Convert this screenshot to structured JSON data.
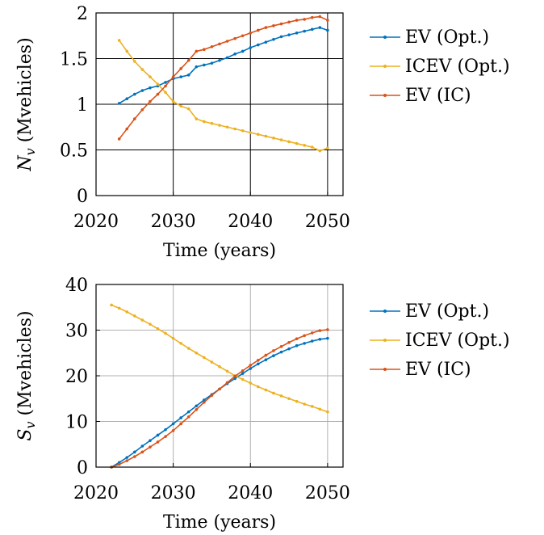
{
  "chart_data": [
    {
      "type": "line",
      "xlabel": "Time (years)",
      "ylabel_symbol": "N",
      "ylabel_sub": "v",
      "ylabel_unit": "(Mvehicles)",
      "xlim": [
        2020,
        2052
      ],
      "ylim": [
        0,
        2
      ],
      "xticks": [
        2020,
        2030,
        2040,
        2050
      ],
      "yticks": [
        0,
        0.5,
        1,
        1.5,
        2
      ],
      "ytick_labels": [
        "0",
        "0.5",
        "1",
        "1.5",
        "2"
      ],
      "grid": true,
      "grid_color": "#000000",
      "legend_position": "right",
      "series": [
        {
          "name": "EV (Opt.)",
          "color": "#0072BD",
          "x": [
            2023,
            2024,
            2025,
            2026,
            2027,
            2028,
            2029,
            2030,
            2031,
            2032,
            2033,
            2034,
            2035,
            2036,
            2037,
            2038,
            2039,
            2040,
            2041,
            2042,
            2043,
            2044,
            2045,
            2046,
            2047,
            2048,
            2049,
            2050
          ],
          "y": [
            1.01,
            1.06,
            1.11,
            1.15,
            1.18,
            1.2,
            1.24,
            1.28,
            1.3,
            1.32,
            1.41,
            1.43,
            1.45,
            1.48,
            1.51,
            1.55,
            1.58,
            1.62,
            1.65,
            1.68,
            1.71,
            1.74,
            1.76,
            1.78,
            1.8,
            1.82,
            1.84,
            1.81
          ]
        },
        {
          "name": "ICEV (Opt.)",
          "color": "#EDB120",
          "x": [
            2023,
            2024,
            2025,
            2026,
            2027,
            2028,
            2029,
            2030,
            2031,
            2032,
            2033,
            2034,
            2035,
            2036,
            2037,
            2038,
            2039,
            2040,
            2041,
            2042,
            2043,
            2044,
            2045,
            2046,
            2047,
            2048,
            2049,
            2050
          ],
          "y": [
            1.7,
            1.58,
            1.47,
            1.38,
            1.3,
            1.22,
            1.13,
            1.03,
            0.98,
            0.95,
            0.84,
            0.81,
            0.79,
            0.77,
            0.75,
            0.73,
            0.71,
            0.69,
            0.67,
            0.65,
            0.63,
            0.61,
            0.59,
            0.57,
            0.55,
            0.53,
            0.49,
            0.52
          ]
        },
        {
          "name": "EV (IC)",
          "color": "#D95319",
          "x": [
            2023,
            2024,
            2025,
            2026,
            2027,
            2028,
            2029,
            2030,
            2031,
            2032,
            2033,
            2034,
            2035,
            2036,
            2037,
            2038,
            2039,
            2040,
            2041,
            2042,
            2043,
            2044,
            2045,
            2046,
            2047,
            2048,
            2049,
            2050
          ],
          "y": [
            0.62,
            0.73,
            0.84,
            0.94,
            1.03,
            1.11,
            1.2,
            1.3,
            1.39,
            1.48,
            1.58,
            1.6,
            1.63,
            1.66,
            1.69,
            1.72,
            1.75,
            1.78,
            1.81,
            1.84,
            1.86,
            1.88,
            1.9,
            1.92,
            1.93,
            1.95,
            1.96,
            1.92
          ]
        }
      ]
    },
    {
      "type": "line",
      "xlabel": "Time (years)",
      "ylabel_symbol": "S",
      "ylabel_sub": "v",
      "ylabel_unit": "(Mvehicles)",
      "xlim": [
        2020,
        2052
      ],
      "ylim": [
        0,
        40
      ],
      "xticks": [
        2020,
        2030,
        2040,
        2050
      ],
      "yticks": [
        0,
        10,
        20,
        30,
        40
      ],
      "ytick_labels": [
        "0",
        "10",
        "20",
        "30",
        "40"
      ],
      "grid": true,
      "grid_color": "#b0b0b0",
      "legend_position": "right",
      "series": [
        {
          "name": "EV (Opt.)",
          "color": "#0072BD",
          "x": [
            2022,
            2023,
            2024,
            2025,
            2026,
            2027,
            2028,
            2029,
            2030,
            2031,
            2032,
            2033,
            2034,
            2035,
            2036,
            2037,
            2038,
            2039,
            2040,
            2041,
            2042,
            2043,
            2044,
            2045,
            2046,
            2047,
            2048,
            2049,
            2050
          ],
          "y": [
            0,
            1.0,
            2.1,
            3.3,
            4.6,
            5.8,
            7.0,
            8.2,
            9.5,
            10.8,
            12.1,
            13.4,
            14.7,
            15.9,
            17.1,
            18.3,
            19.4,
            20.5,
            21.6,
            22.6,
            23.5,
            24.4,
            25.2,
            25.9,
            26.6,
            27.1,
            27.6,
            28.0,
            28.2
          ]
        },
        {
          "name": "ICEV (Opt.)",
          "color": "#EDB120",
          "x": [
            2022,
            2023,
            2024,
            2025,
            2026,
            2027,
            2028,
            2029,
            2030,
            2031,
            2032,
            2033,
            2034,
            2035,
            2036,
            2037,
            2038,
            2039,
            2040,
            2041,
            2042,
            2043,
            2044,
            2045,
            2046,
            2047,
            2048,
            2049,
            2050
          ],
          "y": [
            35.5,
            34.8,
            34.0,
            33.1,
            32.2,
            31.3,
            30.3,
            29.3,
            28.2,
            27.1,
            26.0,
            25.0,
            24.0,
            23.0,
            22.0,
            21.0,
            20.0,
            19.2,
            18.4,
            17.6,
            16.9,
            16.2,
            15.6,
            15.0,
            14.4,
            13.8,
            13.3,
            12.7,
            12.1
          ]
        },
        {
          "name": "EV (IC)",
          "color": "#D95319",
          "x": [
            2022,
            2023,
            2024,
            2025,
            2026,
            2027,
            2028,
            2029,
            2030,
            2031,
            2032,
            2033,
            2034,
            2035,
            2036,
            2037,
            2038,
            2039,
            2040,
            2041,
            2042,
            2043,
            2044,
            2045,
            2046,
            2047,
            2048,
            2049,
            2050
          ],
          "y": [
            0,
            0.6,
            1.4,
            2.3,
            3.3,
            4.4,
            5.5,
            6.7,
            8.0,
            9.5,
            11.0,
            12.6,
            14.2,
            15.7,
            17.1,
            18.5,
            19.9,
            21.1,
            22.3,
            23.4,
            24.5,
            25.5,
            26.4,
            27.3,
            28.1,
            28.8,
            29.4,
            29.9,
            30.1
          ]
        }
      ]
    }
  ]
}
